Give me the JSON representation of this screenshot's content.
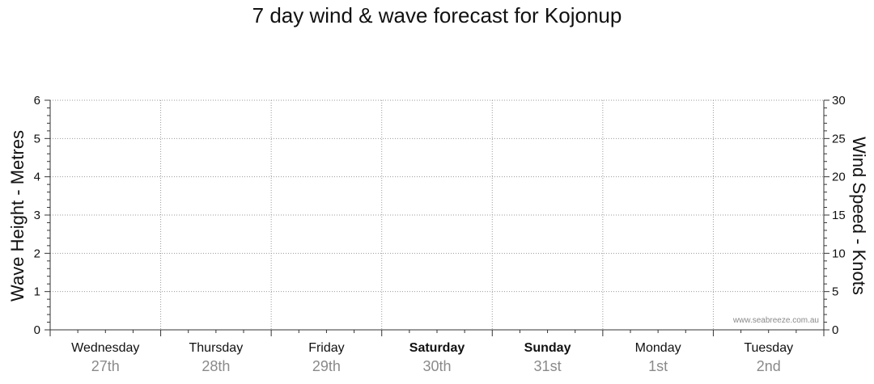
{
  "chart_data": {
    "type": "line",
    "title": "7 day wind & wave forecast for Kojonup",
    "left_axis": {
      "label": "Wave Height - Metres",
      "min": 0,
      "max": 6,
      "ticks": [
        0,
        1,
        2,
        3,
        4,
        5,
        6
      ]
    },
    "right_axis": {
      "label": "Wind Speed - Knots",
      "min": 0,
      "max": 30,
      "ticks": [
        0,
        5,
        10,
        15,
        20,
        25,
        30
      ]
    },
    "grid": true,
    "days": [
      {
        "name": "Wednesday",
        "date": "27th",
        "bold": false
      },
      {
        "name": "Thursday",
        "date": "28th",
        "bold": false
      },
      {
        "name": "Friday",
        "date": "29th",
        "bold": false
      },
      {
        "name": "Saturday",
        "date": "30th",
        "bold": true
      },
      {
        "name": "Sunday",
        "date": "31st",
        "bold": true
      },
      {
        "name": "Monday",
        "date": "1st",
        "bold": false
      },
      {
        "name": "Tuesday",
        "date": "2nd",
        "bold": false
      }
    ],
    "series": [],
    "watermark": "www.seabreeze.com.au"
  }
}
